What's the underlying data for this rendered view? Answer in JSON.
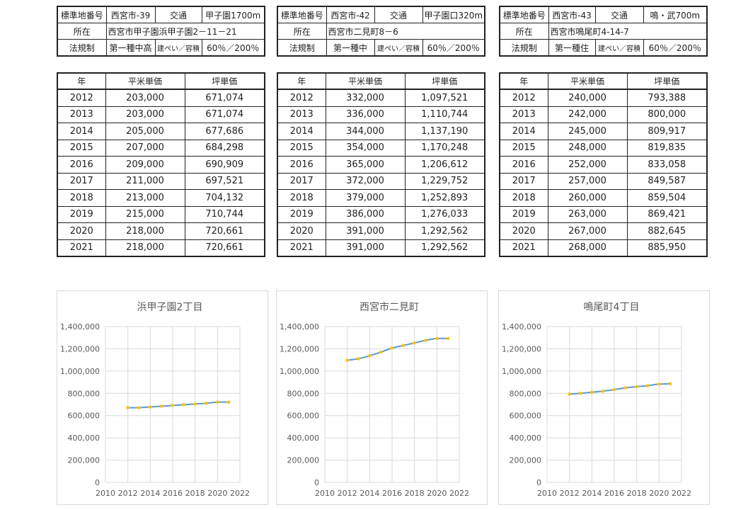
{
  "locations": [
    {
      "info": {
        "label_number": "標準地番号",
        "number": "西宮市-39",
        "label_transport": "交通",
        "transport": "甲子園1700m",
        "label_address": "所在",
        "address": "西宮市甲子園浜甲子園2－11－21",
        "label_regulation": "法規制",
        "zoning": "第一種中高",
        "label_ratio": "建ぺい／容積",
        "ratio": "60％／200％"
      },
      "table": {
        "headers": [
          "年",
          "平米単価",
          "坪単価"
        ],
        "rows": [
          [
            "2012",
            "203,000",
            "671,074"
          ],
          [
            "2013",
            "203,000",
            "671,074"
          ],
          [
            "2014",
            "205,000",
            "677,686"
          ],
          [
            "2015",
            "207,000",
            "684,298"
          ],
          [
            "2016",
            "209,000",
            "690,909"
          ],
          [
            "2017",
            "211,000",
            "697,521"
          ],
          [
            "2018",
            "213,000",
            "704,132"
          ],
          [
            "2019",
            "215,000",
            "710,744"
          ],
          [
            "2020",
            "218,000",
            "720,661"
          ],
          [
            "2021",
            "218,000",
            "720,661"
          ]
        ]
      }
    },
    {
      "info": {
        "label_number": "標準地番号",
        "number": "西宮市-42",
        "label_transport": "交通",
        "transport": "甲子園口320m",
        "label_address": "所在",
        "address": "西宮市二見町8－6",
        "label_regulation": "法規制",
        "zoning": "第一種中",
        "label_ratio": "建ぺい／容積",
        "ratio": "60％／200％"
      },
      "table": {
        "headers": [
          "年",
          "平米単価",
          "坪単価"
        ],
        "rows": [
          [
            "2012",
            "332,000",
            "1,097,521"
          ],
          [
            "2013",
            "336,000",
            "1,110,744"
          ],
          [
            "2014",
            "344,000",
            "1,137,190"
          ],
          [
            "2015",
            "354,000",
            "1,170,248"
          ],
          [
            "2016",
            "365,000",
            "1,206,612"
          ],
          [
            "2017",
            "372,000",
            "1,229,752"
          ],
          [
            "2018",
            "379,000",
            "1,252,893"
          ],
          [
            "2019",
            "386,000",
            "1,276,033"
          ],
          [
            "2020",
            "391,000",
            "1,292,562"
          ],
          [
            "2021",
            "391,000",
            "1,292,562"
          ]
        ]
      }
    },
    {
      "info": {
        "label_number": "標準地番号",
        "number": "西宮市-43",
        "label_transport": "交通",
        "transport": "鳴・武700m",
        "label_address": "所在",
        "address": "西宮市鳴尾町4-14-7",
        "label_regulation": "法規制",
        "zoning": "第一種住",
        "label_ratio": "建ぺい／容積",
        "ratio": "60％／200％"
      },
      "table": {
        "headers": [
          "年",
          "平米単価",
          "坪単価"
        ],
        "rows": [
          [
            "2012",
            "240,000",
            "793,388"
          ],
          [
            "2013",
            "242,000",
            "800,000"
          ],
          [
            "2014",
            "245,000",
            "809,917"
          ],
          [
            "2015",
            "248,000",
            "819,835"
          ],
          [
            "2016",
            "252,000",
            "833,058"
          ],
          [
            "2017",
            "257,000",
            "849,587"
          ],
          [
            "2018",
            "260,000",
            "859,504"
          ],
          [
            "2019",
            "263,000",
            "869,421"
          ],
          [
            "2020",
            "267,000",
            "882,645"
          ],
          [
            "2021",
            "268,000",
            "885,950"
          ]
        ]
      }
    }
  ],
  "chart_data": [
    {
      "type": "line",
      "title": "浜甲子園2丁目",
      "x": [
        2012,
        2013,
        2014,
        2015,
        2016,
        2017,
        2018,
        2019,
        2020,
        2021
      ],
      "values": [
        671074,
        671074,
        677686,
        684298,
        690909,
        697521,
        704132,
        710744,
        720661,
        720661
      ],
      "xlim": [
        2010,
        2022
      ],
      "ylim": [
        0,
        1400000
      ],
      "xticks": [
        "2010",
        "2012",
        "2014",
        "2016",
        "2018",
        "2020",
        "2022"
      ],
      "yticks": [
        "0",
        "200,000",
        "400,000",
        "600,000",
        "800,000",
        "1,000,000",
        "1,200,000",
        "1,400,000"
      ],
      "grid": true,
      "line_color": "#5b9bd5",
      "marker_color": "#ffc000"
    },
    {
      "type": "line",
      "title": "西宮市二見町",
      "x": [
        2012,
        2013,
        2014,
        2015,
        2016,
        2017,
        2018,
        2019,
        2020,
        2021
      ],
      "values": [
        1097521,
        1110744,
        1137190,
        1170248,
        1206612,
        1229752,
        1252893,
        1276033,
        1292562,
        1292562
      ],
      "xlim": [
        2010,
        2022
      ],
      "ylim": [
        0,
        1400000
      ],
      "xticks": [
        "2010",
        "2012",
        "2014",
        "2016",
        "2018",
        "2020",
        "2022"
      ],
      "yticks": [
        "0",
        "200,000",
        "400,000",
        "600,000",
        "800,000",
        "1,000,000",
        "1,200,000",
        "1,400,000"
      ],
      "grid": true,
      "line_color": "#5b9bd5",
      "marker_color": "#ffc000"
    },
    {
      "type": "line",
      "title": "鳴尾町4丁目",
      "x": [
        2012,
        2013,
        2014,
        2015,
        2016,
        2017,
        2018,
        2019,
        2020,
        2021
      ],
      "values": [
        793388,
        800000,
        809917,
        819835,
        833058,
        849587,
        859504,
        869421,
        882645,
        885950
      ],
      "xlim": [
        2010,
        2022
      ],
      "ylim": [
        0,
        1400000
      ],
      "xticks": [
        "2010",
        "2012",
        "2014",
        "2016",
        "2018",
        "2020",
        "2022"
      ],
      "yticks": [
        "0",
        "200,000",
        "400,000",
        "600,000",
        "800,000",
        "1,000,000",
        "1,200,000",
        "1,400,000"
      ],
      "grid": true,
      "line_color": "#5b9bd5",
      "marker_color": "#ffc000"
    }
  ]
}
